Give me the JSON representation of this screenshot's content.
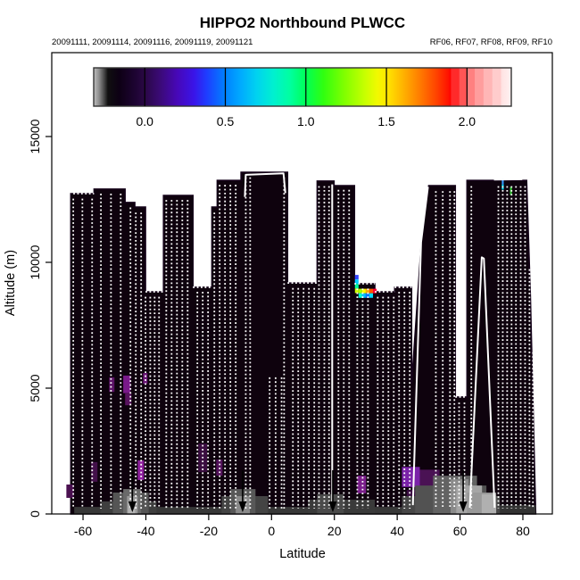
{
  "title": "HIPPO2 Northbound PLWCC",
  "subtitle_left": "20091111, 20091114, 20091116, 20091119, 20091121",
  "subtitle_right": "RF06, RF07, RF08, RF09, RF10",
  "axes": {
    "xlabel": "Latitude",
    "ylabel": "Altitude (m)"
  },
  "colors": {
    "background": "#ffffff",
    "curtain_main": "#2a0830",
    "curtain_top": "#330c3a",
    "curtain_bottom": "#0e020d",
    "flight_track": "#ffffff",
    "arrow": "#000000",
    "frame": "#000000"
  },
  "chart_data": {
    "type": "heatmap",
    "title": "HIPPO2 Northbound PLWCC",
    "xlabel": "Latitude",
    "ylabel": "Altitude (m)",
    "xlim": [
      -70,
      89.5
    ],
    "ylim": [
      0,
      18300
    ],
    "x_ticks": [
      -60,
      -40,
      -20,
      0,
      20,
      40,
      60,
      80
    ],
    "y_ticks": [
      0,
      5000,
      10000,
      15000
    ],
    "flight_dates": [
      "20091111",
      "20091114",
      "20091116",
      "20091119",
      "20091121"
    ],
    "flight_ids": [
      "RF06",
      "RF07",
      "RF08",
      "RF09",
      "RF10"
    ],
    "colorbar": {
      "ticks": [
        0.0,
        0.5,
        1.0,
        1.5,
        2.0
      ],
      "tick_labels": [
        "0.0",
        "0.5",
        "1.0",
        "1.5",
        "2.0"
      ],
      "value_range": [
        -0.317,
        2.275
      ],
      "stops": [
        [
          0.0,
          "#c0c0c0"
        ],
        [
          0.012,
          "#909090"
        ],
        [
          0.025,
          "#484848"
        ],
        [
          0.034,
          "#101010"
        ],
        [
          0.06,
          "#0d0014"
        ],
        [
          0.1,
          "#1e0433"
        ],
        [
          0.122,
          "#2a0845"
        ],
        [
          0.16,
          "#3b0a78"
        ],
        [
          0.2,
          "#4708b8"
        ],
        [
          0.24,
          "#3a14e8"
        ],
        [
          0.27,
          "#1f3cff"
        ],
        [
          0.3,
          "#0a6aff"
        ],
        [
          0.314,
          "#0080ff"
        ],
        [
          0.35,
          "#00a8ff"
        ],
        [
          0.39,
          "#00d2f0"
        ],
        [
          0.43,
          "#00f0d0"
        ],
        [
          0.47,
          "#00ffa0"
        ],
        [
          0.509,
          "#00ff55"
        ],
        [
          0.55,
          "#30ff10"
        ],
        [
          0.6,
          "#80ff00"
        ],
        [
          0.65,
          "#c8ff00"
        ],
        [
          0.68,
          "#f2f900"
        ],
        [
          0.701,
          "#ffe800"
        ],
        [
          0.74,
          "#ffb400"
        ],
        [
          0.78,
          "#ff7d00"
        ],
        [
          0.82,
          "#ff4400"
        ],
        [
          0.85,
          "#ff1100"
        ],
        [
          0.855,
          "#ff0000"
        ],
        [
          0.856,
          "#ff2a2a"
        ],
        [
          0.875,
          "#ff2a2a"
        ],
        [
          0.876,
          "#ff5555"
        ],
        [
          0.893,
          "#ff5555"
        ],
        [
          0.894,
          "#ff8080"
        ],
        [
          0.912,
          "#ff8080"
        ],
        [
          0.913,
          "#ff9d9d"
        ],
        [
          0.933,
          "#ff9d9d"
        ],
        [
          0.934,
          "#ffb6b6"
        ],
        [
          0.954,
          "#ffb6b6"
        ],
        [
          0.955,
          "#ffcccc"
        ],
        [
          0.975,
          "#ffcccc"
        ],
        [
          0.976,
          "#ffe2e2"
        ],
        [
          1.0,
          "#fff2f2"
        ]
      ]
    },
    "arrows_lat": [
      -44.3,
      -9.2,
      19.5,
      61.0
    ],
    "silhouette_lat_alt": [
      [
        -63.9,
        0
      ],
      [
        -63.9,
        12730
      ],
      [
        -56.5,
        12730
      ],
      [
        -56.5,
        12910
      ],
      [
        -46.6,
        12910
      ],
      [
        -46.6,
        12380
      ],
      [
        -43.5,
        12380
      ],
      [
        -43.5,
        12200
      ],
      [
        -40.1,
        12200
      ],
      [
        -40.1,
        8830
      ],
      [
        -34.4,
        8830
      ],
      [
        -34.4,
        12660
      ],
      [
        -25.0,
        12660
      ],
      [
        -25.0,
        9010
      ],
      [
        -19.0,
        9010
      ],
      [
        -19.0,
        12200
      ],
      [
        -17.3,
        12200
      ],
      [
        -17.3,
        13260
      ],
      [
        -9.7,
        13260
      ],
      [
        -9.7,
        13580
      ],
      [
        5.1,
        13580
      ],
      [
        5.1,
        9180
      ],
      [
        14.5,
        9180
      ],
      [
        14.5,
        13230
      ],
      [
        19.9,
        13230
      ],
      [
        19.9,
        13050
      ],
      [
        26.4,
        13050
      ],
      [
        26.4,
        9150
      ],
      [
        32.9,
        9150
      ],
      [
        32.9,
        8830
      ],
      [
        39.2,
        8830
      ],
      [
        39.2,
        9010
      ],
      [
        44.6,
        9010
      ],
      [
        44.6,
        5180
      ],
      [
        47.7,
        10850
      ],
      [
        50.0,
        13050
      ],
      [
        58.5,
        13050
      ],
      [
        58.5,
        4650
      ],
      [
        62.2,
        4650
      ],
      [
        62.2,
        13260
      ],
      [
        81.2,
        13260
      ],
      [
        82.4,
        8700
      ],
      [
        84.1,
        0
      ]
    ],
    "dotted_profiles": [
      [
        -63.1,
        12600
      ],
      [
        -60.2,
        12600
      ],
      [
        -57.1,
        12600
      ],
      [
        -54.3,
        12800
      ],
      [
        -51.1,
        12800
      ],
      [
        -48.0,
        12800
      ],
      [
        -44.9,
        12250
      ],
      [
        -43.2,
        12050
      ],
      [
        -41.5,
        12050
      ],
      [
        -40.1,
        8700
      ],
      [
        -38.6,
        8700
      ],
      [
        -37.2,
        8700
      ],
      [
        -35.8,
        8700
      ],
      [
        -33.5,
        12550
      ],
      [
        -31.8,
        12550
      ],
      [
        -30.1,
        12550
      ],
      [
        -28.4,
        12550
      ],
      [
        -26.7,
        12550
      ],
      [
        -23.6,
        8900
      ],
      [
        -21.9,
        8900
      ],
      [
        -20.2,
        8900
      ],
      [
        -18.2,
        12050
      ],
      [
        -16.5,
        13150
      ],
      [
        -14.8,
        13150
      ],
      [
        -13.1,
        13150
      ],
      [
        -11.4,
        13150
      ],
      [
        -8.2,
        13450
      ],
      [
        -6.8,
        13450
      ],
      [
        -0.6,
        5500
      ],
      [
        1.3,
        5500
      ],
      [
        3.2,
        5500
      ],
      [
        4.0,
        13450
      ],
      [
        6.8,
        9050
      ],
      [
        8.5,
        9050
      ],
      [
        10.2,
        9050
      ],
      [
        11.9,
        9050
      ],
      [
        13.6,
        9050
      ],
      [
        15.1,
        13100
      ],
      [
        16.8,
        13100
      ],
      [
        18.3,
        13100
      ],
      [
        21.3,
        12950
      ],
      [
        23.0,
        12950
      ],
      [
        24.7,
        12950
      ],
      [
        27.3,
        9030
      ],
      [
        29.0,
        9030
      ],
      [
        30.7,
        9030
      ],
      [
        33.8,
        8700
      ],
      [
        35.5,
        8700
      ],
      [
        37.2,
        8700
      ],
      [
        38.9,
        8700
      ],
      [
        40.6,
        8900
      ],
      [
        42.3,
        8900
      ],
      [
        44.0,
        8900
      ],
      [
        52.3,
        12900
      ],
      [
        54.5,
        12900
      ],
      [
        56.8,
        12900
      ],
      [
        58.2,
        12900
      ],
      [
        59.7,
        4500
      ],
      [
        61.4,
        4500
      ],
      [
        63.6,
        13100
      ],
      [
        72.2,
        13100
      ],
      [
        73.6,
        13100
      ],
      [
        75.0,
        13100
      ],
      [
        76.4,
        13100
      ],
      [
        77.8,
        13100
      ],
      [
        79.3,
        13100
      ],
      [
        80.7,
        13100
      ],
      [
        82.1,
        9800
      ],
      [
        83.2,
        6500
      ]
    ],
    "dotted_ceilings": [
      [
        -63.1,
        -56.5,
        12730
      ],
      [
        -40.1,
        -34.4,
        8830
      ],
      [
        -25.0,
        -19.0,
        9010
      ],
      [
        5.1,
        14.5,
        9180
      ],
      [
        26.4,
        32.9,
        9150
      ],
      [
        32.9,
        39.2,
        8830
      ],
      [
        39.2,
        44.6,
        9010
      ],
      [
        58.5,
        62.2,
        4650
      ]
    ],
    "solid_tracks": [
      [
        [
          -8.5,
          12600
        ],
        [
          -8.2,
          13480
        ],
        [
          3.8,
          13540
        ],
        [
          4.4,
          12750
        ]
      ],
      [
        [
          19.3,
          13100
        ],
        [
          19.3,
          250
        ]
      ],
      [
        [
          45.0,
          350
        ],
        [
          47.6,
          10800
        ],
        [
          49.8,
          13000
        ]
      ],
      [
        [
          63.1,
          250
        ],
        [
          66.9,
          10200
        ],
        [
          67.6,
          10150
        ],
        [
          71.0,
          250
        ]
      ],
      [
        [
          70.8,
          13290
        ],
        [
          79.8,
          13300
        ]
      ]
    ],
    "hot_cells": [
      [
        26.55,
        9500,
        1.15,
        180,
        "#3344ff"
      ],
      [
        26.55,
        9320,
        1.15,
        180,
        "#00ccff"
      ],
      [
        26.55,
        9140,
        1.15,
        180,
        "#00ff99"
      ],
      [
        26.55,
        8960,
        1.15,
        180,
        "#ccff00"
      ],
      [
        27.7,
        8950,
        1.15,
        180,
        "#aaff00"
      ],
      [
        28.85,
        8950,
        1.15,
        180,
        "#ffff00"
      ],
      [
        30.0,
        8950,
        1.15,
        180,
        "#ffaa00"
      ],
      [
        31.15,
        8950,
        1.15,
        180,
        "#ff5500"
      ],
      [
        32.3,
        8950,
        1.15,
        180,
        "#ff0033"
      ],
      [
        27.7,
        8770,
        1.15,
        180,
        "#00ffd5"
      ],
      [
        28.85,
        8770,
        1.15,
        180,
        "#00bbff"
      ],
      [
        30.0,
        8770,
        1.15,
        180,
        "#0077ff"
      ],
      [
        31.15,
        8770,
        1.15,
        180,
        "#00ddff"
      ],
      [
        73.3,
        13320,
        0.6,
        230,
        "#3399ff"
      ],
      [
        73.3,
        13090,
        0.6,
        200,
        "#00e5ff"
      ],
      [
        75.9,
        13000,
        0.6,
        330,
        "#33cc33"
      ]
    ],
    "bright_patches": [
      [
        -51.7,
        5430,
        1.7,
        580,
        "#5c1366"
      ],
      [
        -47.2,
        5500,
        2.3,
        700,
        "#7a1a8a"
      ],
      [
        -46.6,
        4820,
        2.0,
        500,
        "#58135e"
      ],
      [
        -42.6,
        2130,
        2.0,
        780,
        "#8c1f9c"
      ],
      [
        -57.4,
        2060,
        2.0,
        780,
        "#43104a"
      ],
      [
        -65.3,
        1170,
        2.3,
        530,
        "#4a1150"
      ],
      [
        -23.3,
        2800,
        2.8,
        1130,
        "#3a0d40"
      ],
      [
        -17.6,
        2160,
        2.0,
        640,
        "#52125a"
      ],
      [
        -40.9,
        5600,
        1.4,
        430,
        "#6a1676"
      ],
      [
        27.3,
        1520,
        2.8,
        700,
        "#7b1f8b"
      ],
      [
        41.5,
        1870,
        5.7,
        800,
        "#7a22a8"
      ],
      [
        47.2,
        1760,
        6.3,
        700,
        "#4a1254"
      ],
      [
        43.0,
        950,
        8.5,
        500,
        "#3a0d42"
      ]
    ],
    "boundary_layer_gray": [
      [
        -62.8,
        280,
        145.8,
        280,
        "#383838"
      ],
      [
        -54.5,
        500,
        17.9,
        500,
        "#3f3f3f"
      ],
      [
        -50.5,
        850,
        11.4,
        850,
        "#555555"
      ],
      [
        -47.2,
        990,
        5.7,
        990,
        "#6a6a6a"
      ],
      [
        -46.0,
        710,
        3.4,
        710,
        "#9a9a9a"
      ],
      [
        -45.7,
        500,
        2.3,
        500,
        "#b5b5b5"
      ],
      [
        -15.9,
        710,
        14.8,
        710,
        "#444444"
      ],
      [
        -13.1,
        990,
        8.0,
        990,
        "#585858"
      ],
      [
        -11.4,
        710,
        4.5,
        710,
        "#8a8a8a"
      ],
      [
        11.6,
        570,
        21.3,
        570,
        "#3a3a3a"
      ],
      [
        14.5,
        780,
        8.5,
        780,
        "#4a4a4a"
      ],
      [
        41.5,
        710,
        31.2,
        710,
        "#474747"
      ],
      [
        45.7,
        1130,
        22.7,
        1130,
        "#525252"
      ],
      [
        51.4,
        1520,
        14.0,
        1520,
        "#636363"
      ],
      [
        57.0,
        1380,
        5.7,
        1380,
        "#8a8a8a"
      ],
      [
        58.8,
        1130,
        8.2,
        1130,
        "#a5a5a5"
      ],
      [
        62.2,
        850,
        9.3,
        850,
        "#999999"
      ],
      [
        66.9,
        780,
        4.6,
        780,
        "#b0b0b0"
      ],
      [
        72.7,
        350,
        11.4,
        350,
        "#333333"
      ]
    ]
  }
}
